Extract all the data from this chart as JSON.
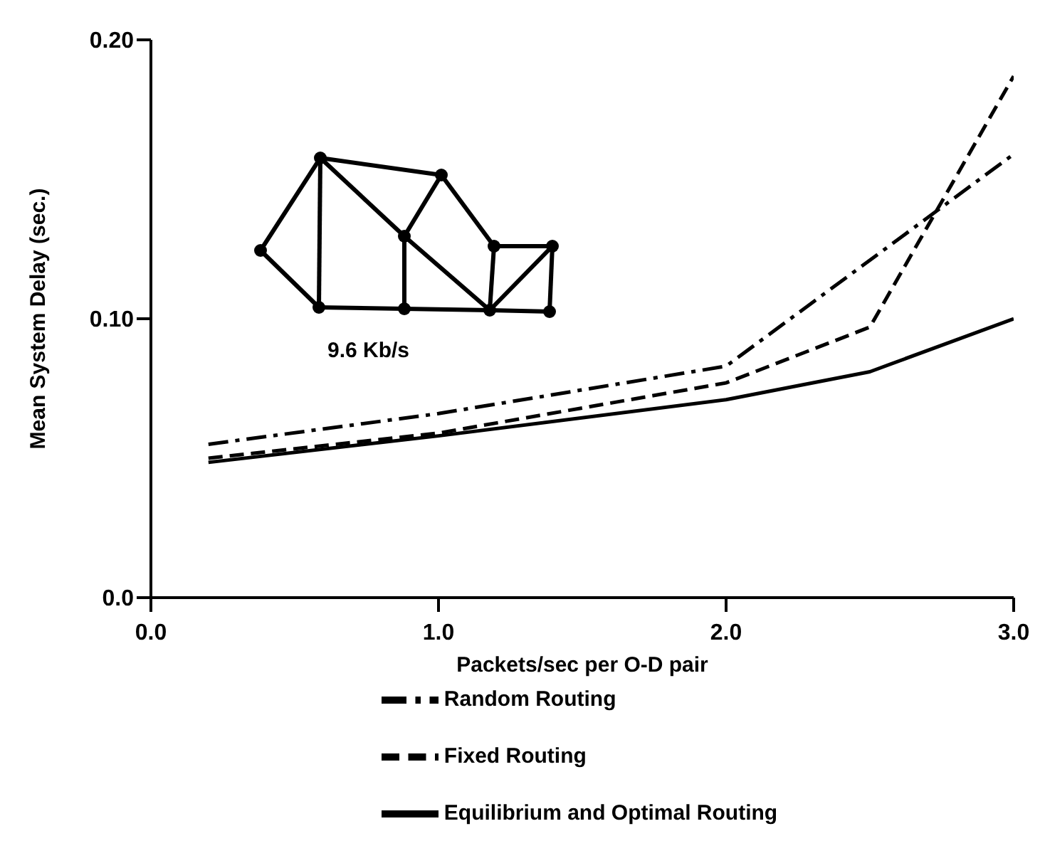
{
  "chart_data": {
    "type": "line",
    "xlabel": "Packets/sec per O-D pair",
    "ylabel": "Mean System Delay (sec.)",
    "annotations": [
      "9.6 Kb/s"
    ],
    "xlim": [
      0,
      3
    ],
    "xticks": [
      {
        "value": 0,
        "label": "0.0"
      },
      {
        "value": 1,
        "label": "1.0"
      },
      {
        "value": 2,
        "label": "2.0"
      },
      {
        "value": 3,
        "label": "3.0"
      }
    ],
    "ylim": [
      0,
      0.2
    ],
    "yticks": [
      {
        "value": 0,
        "label": "0.0"
      },
      {
        "value": 0.1,
        "label": "0.10"
      },
      {
        "value": 0.2,
        "label": "0.20"
      }
    ],
    "grid": false,
    "legend": "bottom left",
    "marker": "none",
    "series": [
      {
        "name": "Random Routing",
        "color": "#000000",
        "line_style": "dashdot",
        "x": [
          0.2,
          1.0,
          2.0,
          3.0
        ],
        "values": [
          0.055,
          0.066,
          0.083,
          0.159
        ]
      },
      {
        "name": "Fixed Routing",
        "color": "#000000",
        "line_style": "dashed",
        "x": [
          0.2,
          1.0,
          2.0,
          2.5,
          3.0
        ],
        "values": [
          0.05,
          0.059,
          0.077,
          0.097,
          0.187
        ]
      },
      {
        "name": "Equilibrium and Optimal Routing",
        "color": "#000000",
        "line_style": "solid",
        "x": [
          0.2,
          1.0,
          2.0,
          2.5,
          3.0
        ],
        "values": [
          0.0485,
          0.058,
          0.071,
          0.081,
          0.1
        ]
      }
    ]
  }
}
